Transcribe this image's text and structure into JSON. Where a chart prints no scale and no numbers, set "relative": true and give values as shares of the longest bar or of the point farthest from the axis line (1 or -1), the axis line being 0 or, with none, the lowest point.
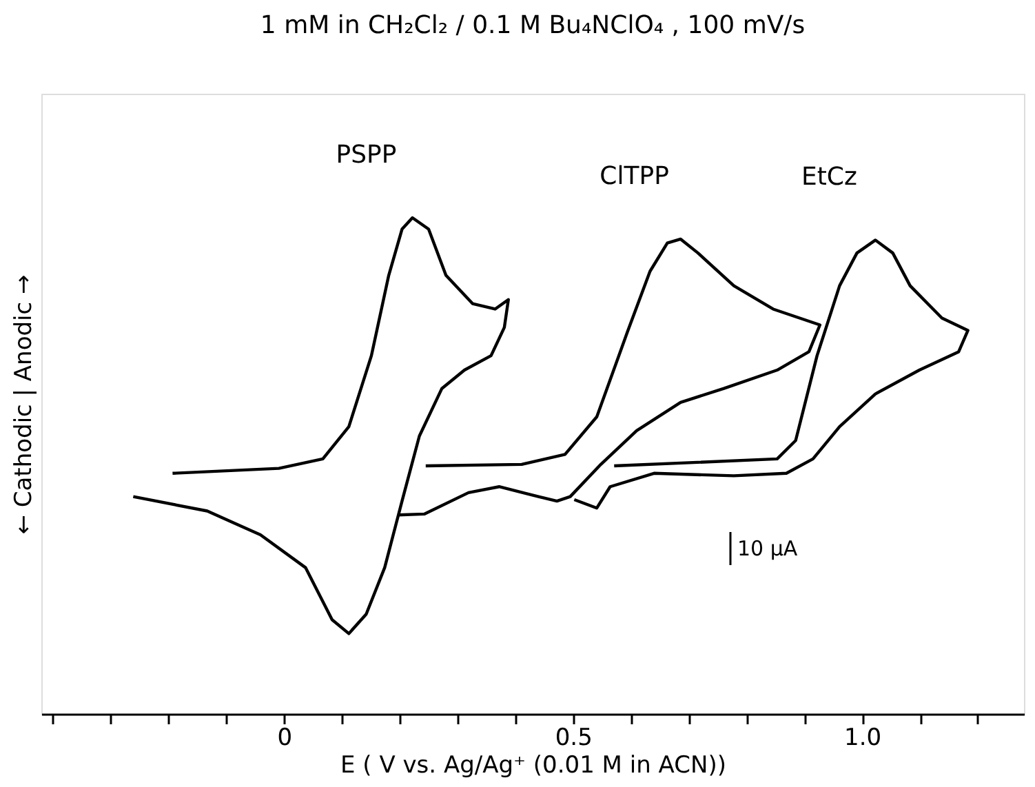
{
  "chart_data": {
    "type": "line",
    "title": "1 mM in CH₂Cl₂ / 0.1 M Bu₄NClO₄ ,  100 mV/s",
    "xlabel": "E    ( V vs. Ag/Ag⁺ (0.01 M in ACN))",
    "ylabel": "← Cathodic  |  Anodic →",
    "relative": true,
    "grid": false,
    "marker": "none",
    "line_style": "solid",
    "annotations": [
      "10 μA"
    ],
    "xlim": [
      -0.42,
      1.28
    ],
    "xticks": [
      {
        "value": -0.4,
        "label": null
      },
      {
        "value": -0.3,
        "label": null
      },
      {
        "value": -0.2,
        "label": null
      },
      {
        "value": -0.1,
        "label": null
      },
      0,
      {
        "value": 0.1,
        "label": null
      },
      {
        "value": 0.2,
        "label": null
      },
      {
        "value": 0.3,
        "label": null
      },
      {
        "value": 0.4,
        "label": null
      },
      0.5,
      {
        "value": 0.6,
        "label": null
      },
      {
        "value": 0.7,
        "label": null
      },
      {
        "value": 0.8,
        "label": null
      },
      {
        "value": 0.9,
        "label": null
      },
      {
        "value": 1.0,
        "label": "1.0"
      },
      {
        "value": 1.1,
        "label": null
      },
      {
        "value": 1.2,
        "label": null
      }
    ],
    "series": [
      {
        "name": "PSPP",
        "color": "#000000",
        "x": [
          -0.193,
          -0.009,
          0.067,
          0.112,
          0.151,
          0.181,
          0.204,
          0.222,
          0.25,
          0.28,
          0.326,
          0.365,
          0.388,
          0.381,
          0.358,
          0.312,
          0.273,
          0.234,
          0.204,
          0.174,
          0.142,
          0.112,
          0.083,
          0.037,
          -0.041,
          -0.133,
          -0.261
        ],
        "values": [
          0.485,
          0.495,
          0.514,
          0.579,
          0.722,
          0.884,
          0.977,
          1.0,
          0.977,
          0.884,
          0.827,
          0.816,
          0.835,
          0.779,
          0.722,
          0.693,
          0.656,
          0.56,
          0.429,
          0.295,
          0.201,
          0.162,
          0.19,
          0.295,
          0.361,
          0.409,
          0.438
        ]
      },
      {
        "name": "ClTPP",
        "color": "#000000",
        "x": [
          0.245,
          0.411,
          0.486,
          0.541,
          0.594,
          0.633,
          0.663,
          0.686,
          0.716,
          0.778,
          0.846,
          0.927,
          0.908,
          0.853,
          0.761,
          0.686,
          0.61,
          0.548,
          0.495,
          0.472,
          0.44,
          0.372,
          0.319,
          0.243,
          0.197
        ],
        "values": [
          0.5,
          0.503,
          0.523,
          0.599,
          0.77,
          0.892,
          0.949,
          0.957,
          0.929,
          0.863,
          0.816,
          0.784,
          0.73,
          0.693,
          0.656,
          0.628,
          0.571,
          0.503,
          0.438,
          0.429,
          0.438,
          0.458,
          0.446,
          0.403,
          0.401
        ]
      },
      {
        "name": "EtCz",
        "color": "#000000",
        "x": [
          0.571,
          0.853,
          0.885,
          0.922,
          0.961,
          0.991,
          1.023,
          1.053,
          1.083,
          1.138,
          1.183,
          1.167,
          1.099,
          1.023,
          0.961,
          0.915,
          0.869,
          0.778,
          0.64,
          0.564,
          0.541,
          0.502
        ],
        "values": [
          0.5,
          0.514,
          0.551,
          0.722,
          0.863,
          0.929,
          0.955,
          0.929,
          0.863,
          0.798,
          0.773,
          0.73,
          0.693,
          0.645,
          0.579,
          0.514,
          0.485,
          0.48,
          0.485,
          0.458,
          0.415,
          0.432
        ]
      }
    ]
  }
}
